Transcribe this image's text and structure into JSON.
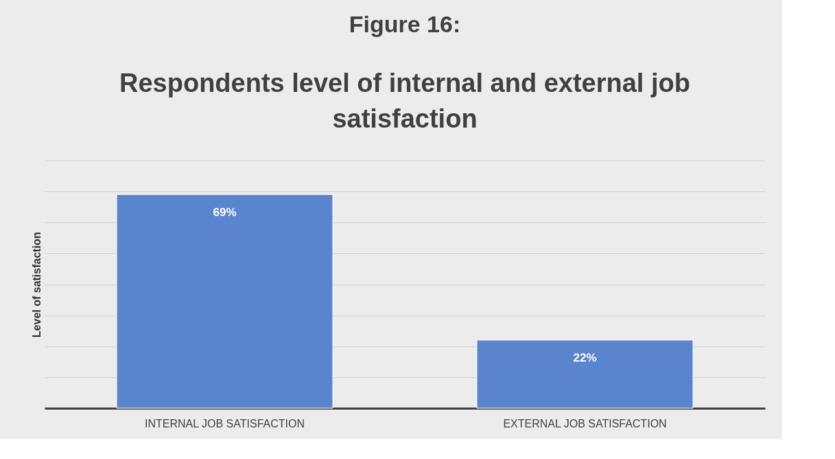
{
  "chart_data": {
    "type": "bar",
    "title": "Figure 16:",
    "subtitle": "Respondents level of internal and external job satisfaction",
    "ylabel": "Level of satisfaction",
    "categories": [
      "INTERNAL JOB SATISFACTION",
      "EXTERNAL JOB SATISFACTION"
    ],
    "values": [
      69,
      22
    ],
    "color": "#5b84cf",
    "value_labels": [
      "69%",
      "22%"
    ],
    "ylim": [
      0,
      80
    ],
    "yticks": [
      {
        "value": 0,
        "label": null
      },
      {
        "value": 10,
        "label": null
      },
      {
        "value": 20,
        "label": null
      },
      {
        "value": 30,
        "label": null
      },
      {
        "value": 40,
        "label": null
      },
      {
        "value": 50,
        "label": null
      },
      {
        "value": 60,
        "label": null
      },
      {
        "value": 70,
        "label": null
      },
      {
        "value": 80,
        "label": null
      }
    ],
    "tick_labels": "x",
    "grid": "y"
  }
}
